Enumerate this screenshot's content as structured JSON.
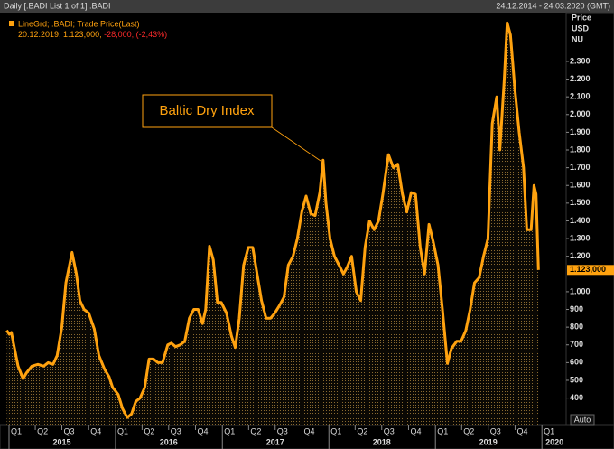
{
  "chart_data": {
    "type": "area-line",
    "header_left": "Daily [.BADI List 1 of 1] .BADI",
    "header_right": "24.12.2014 - 24.03.2020 (GMT)",
    "legend_line1": "LineGrd; .BADI; Trade Price(Last)",
    "legend_line2_a": "20.12.2019; 1.123,000;",
    "legend_line2_b": "-28,000; (-2,43%)",
    "axis_units": [
      "Price",
      "USD",
      "NU"
    ],
    "annotation": "Baltic Dry Index",
    "auto_button": "Auto",
    "xlim": [
      "2014-12-24",
      "2020-03-24"
    ],
    "xticks": [
      {
        "value": "2015-01-01",
        "label": "Q1"
      },
      {
        "value": "2015-04-01",
        "label": "Q2"
      },
      {
        "value": "2015-07-01",
        "label": "Q3"
      },
      {
        "value": "2015-10-01",
        "label": "Q4"
      },
      {
        "value": "2016-01-01",
        "label": "Q1"
      },
      {
        "value": "2016-04-01",
        "label": "Q2"
      },
      {
        "value": "2016-07-01",
        "label": "Q3"
      },
      {
        "value": "2016-10-01",
        "label": "Q4"
      },
      {
        "value": "2017-01-01",
        "label": "Q1"
      },
      {
        "value": "2017-04-01",
        "label": "Q2"
      },
      {
        "value": "2017-07-01",
        "label": "Q3"
      },
      {
        "value": "2017-10-01",
        "label": "Q4"
      },
      {
        "value": "2018-01-01",
        "label": "Q1"
      },
      {
        "value": "2018-04-01",
        "label": "Q2"
      },
      {
        "value": "2018-07-01",
        "label": "Q3"
      },
      {
        "value": "2018-10-01",
        "label": "Q4"
      },
      {
        "value": "2019-01-01",
        "label": "Q1"
      },
      {
        "value": "2019-04-01",
        "label": "Q2"
      },
      {
        "value": "2019-07-01",
        "label": "Q3"
      },
      {
        "value": "2019-10-01",
        "label": "Q4"
      },
      {
        "value": "2020-01-01",
        "label": "Q1"
      }
    ],
    "years": [
      "2015",
      "2016",
      "2017",
      "2018",
      "2019",
      "2020"
    ],
    "ylim": [
      250,
      2570
    ],
    "yticks": [
      {
        "value": 2300,
        "label": "2.300"
      },
      {
        "value": 2200,
        "label": "2.200"
      },
      {
        "value": 2100,
        "label": "2.100"
      },
      {
        "value": 2000,
        "label": "2.000"
      },
      {
        "value": 1900,
        "label": "1.900"
      },
      {
        "value": 1800,
        "label": "1.800"
      },
      {
        "value": 1700,
        "label": "1.700"
      },
      {
        "value": 1600,
        "label": "1.600"
      },
      {
        "value": 1500,
        "label": "1.500"
      },
      {
        "value": 1400,
        "label": "1.400"
      },
      {
        "value": 1300,
        "label": "1.300"
      },
      {
        "value": 1200,
        "label": "1.200"
      },
      {
        "value": 1000,
        "label": "1.000"
      },
      900,
      800,
      700,
      600,
      500,
      400
    ],
    "last_value_label": "1.123,000",
    "x": [
      "2014-12-24",
      "2015-01-02",
      "2015-01-09",
      "2015-01-20",
      "2015-02-01",
      "2015-02-18",
      "2015-03-01",
      "2015-03-20",
      "2015-04-10",
      "2015-04-30",
      "2015-05-15",
      "2015-06-01",
      "2015-06-15",
      "2015-07-01",
      "2015-07-15",
      "2015-08-05",
      "2015-08-20",
      "2015-09-01",
      "2015-09-15",
      "2015-10-01",
      "2015-10-20",
      "2015-11-05",
      "2015-11-25",
      "2015-12-10",
      "2015-12-22",
      "2016-01-10",
      "2016-01-25",
      "2016-02-10",
      "2016-02-25",
      "2016-03-10",
      "2016-03-25",
      "2016-04-10",
      "2016-04-25",
      "2016-05-10",
      "2016-05-25",
      "2016-06-10",
      "2016-06-28",
      "2016-07-10",
      "2016-07-25",
      "2016-08-10",
      "2016-08-25",
      "2016-09-10",
      "2016-09-25",
      "2016-10-10",
      "2016-10-25",
      "2016-11-05",
      "2016-11-18",
      "2016-12-01",
      "2016-12-15",
      "2016-12-28",
      "2017-01-15",
      "2017-02-01",
      "2017-02-14",
      "2017-02-28",
      "2017-03-15",
      "2017-03-31",
      "2017-04-15",
      "2017-04-30",
      "2017-05-15",
      "2017-05-31",
      "2017-06-15",
      "2017-06-30",
      "2017-07-15",
      "2017-07-31",
      "2017-08-15",
      "2017-08-31",
      "2017-09-15",
      "2017-09-30",
      "2017-10-15",
      "2017-10-31",
      "2017-11-15",
      "2017-12-01",
      "2017-12-12",
      "2017-12-22",
      "2018-01-05",
      "2018-01-20",
      "2018-02-05",
      "2018-02-20",
      "2018-03-05",
      "2018-03-20",
      "2018-04-05",
      "2018-04-20",
      "2018-05-05",
      "2018-05-20",
      "2018-06-05",
      "2018-06-20",
      "2018-07-05",
      "2018-07-24",
      "2018-08-10",
      "2018-08-25",
      "2018-09-10",
      "2018-09-25",
      "2018-10-10",
      "2018-10-25",
      "2018-11-10",
      "2018-11-25",
      "2018-12-10",
      "2018-12-25",
      "2019-01-10",
      "2019-01-25",
      "2019-02-11",
      "2019-02-25",
      "2019-03-15",
      "2019-03-30",
      "2019-04-15",
      "2019-04-30",
      "2019-05-15",
      "2019-05-31",
      "2019-06-15",
      "2019-06-30",
      "2019-07-15",
      "2019-07-30",
      "2019-08-10",
      "2019-08-25",
      "2019-09-04",
      "2019-09-15",
      "2019-09-30",
      "2019-10-15",
      "2019-10-30",
      "2019-11-10",
      "2019-11-25",
      "2019-12-05",
      "2019-12-12",
      "2019-12-20"
    ],
    "series": [
      {
        "name": ".BADI",
        "color": "#ffa20f",
        "values": [
          782,
          760,
          770,
          680,
          580,
          509,
          540,
          580,
          590,
          580,
          600,
          590,
          640,
          800,
          1050,
          1222,
          1100,
          950,
          900,
          880,
          790,
          640,
          560,
          520,
          460,
          420,
          340,
          290,
          310,
          380,
          400,
          460,
          620,
          620,
          600,
          600,
          700,
          710,
          690,
          700,
          720,
          850,
          900,
          900,
          820,
          900,
          1257,
          1180,
          940,
          940,
          880,
          750,
          685,
          850,
          1150,
          1250,
          1250,
          1100,
          950,
          850,
          850,
          880,
          920,
          970,
          1150,
          1200,
          1300,
          1450,
          1540,
          1440,
          1430,
          1560,
          1743,
          1500,
          1300,
          1200,
          1150,
          1100,
          1140,
          1200,
          1000,
          950,
          1250,
          1400,
          1350,
          1400,
          1550,
          1774,
          1700,
          1720,
          1550,
          1450,
          1560,
          1550,
          1250,
          1100,
          1380,
          1280,
          1150,
          900,
          595,
          680,
          720,
          720,
          780,
          900,
          1050,
          1080,
          1200,
          1300,
          1950,
          2100,
          1800,
          2200,
          2518,
          2450,
          2150,
          1900,
          1700,
          1350,
          1350,
          1600,
          1550,
          1123
        ]
      }
    ]
  }
}
